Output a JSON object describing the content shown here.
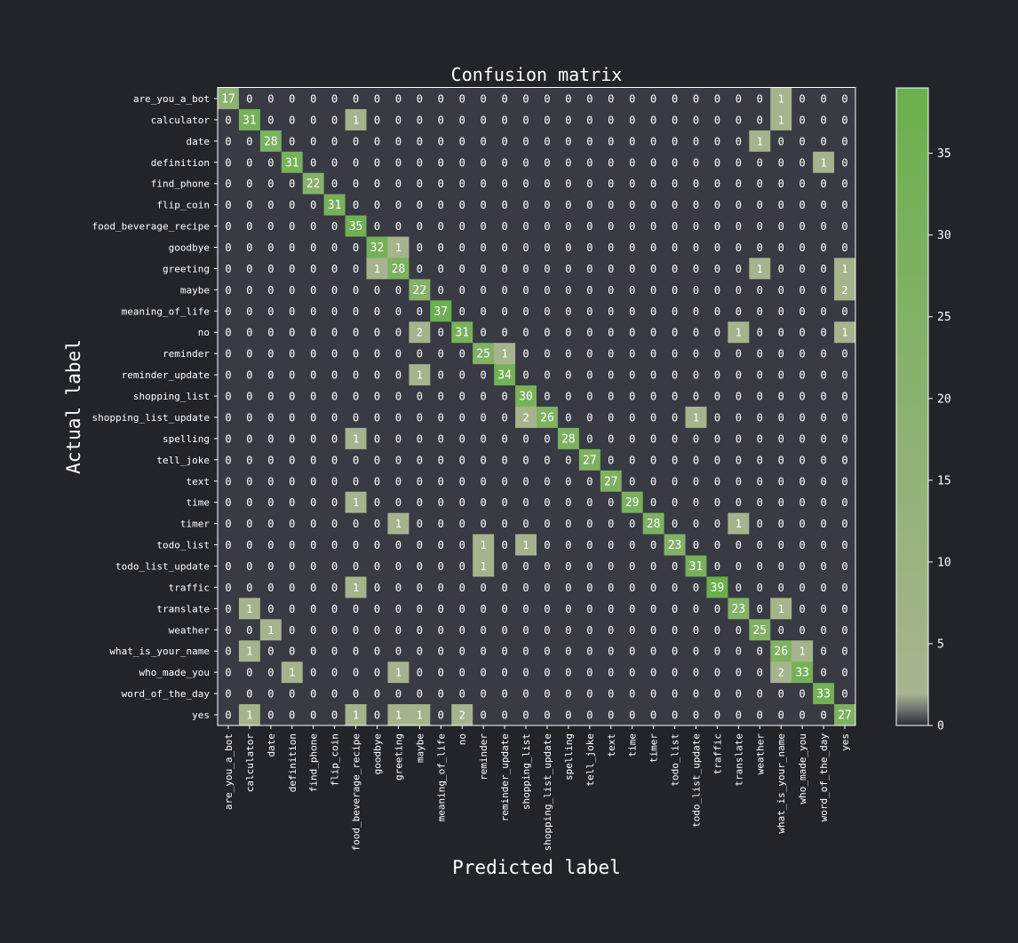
{
  "chart_data": {
    "type": "heatmap",
    "title": "Confusion matrix",
    "xlabel": "Predicted label",
    "ylabel": "Actual label",
    "labels": [
      "are_you_a_bot",
      "calculator",
      "date",
      "definition",
      "find_phone",
      "flip_coin",
      "food_beverage_recipe",
      "goodbye",
      "greeting",
      "maybe",
      "meaning_of_life",
      "no",
      "reminder",
      "reminder_update",
      "shopping_list",
      "shopping_list_update",
      "spelling",
      "tell_joke",
      "text",
      "time",
      "timer",
      "todo_list",
      "todo_list_update",
      "traffic",
      "translate",
      "weather",
      "what_is_your_name",
      "who_made_you",
      "word_of_the_day",
      "yes"
    ],
    "matrix": [
      [
        17,
        0,
        0,
        0,
        0,
        0,
        0,
        0,
        0,
        0,
        0,
        0,
        0,
        0,
        0,
        0,
        0,
        0,
        0,
        0,
        0,
        0,
        0,
        0,
        0,
        0,
        1,
        0,
        0,
        0
      ],
      [
        0,
        31,
        0,
        0,
        0,
        0,
        1,
        0,
        0,
        0,
        0,
        0,
        0,
        0,
        0,
        0,
        0,
        0,
        0,
        0,
        0,
        0,
        0,
        0,
        0,
        0,
        1,
        0,
        0,
        0
      ],
      [
        0,
        0,
        28,
        0,
        0,
        0,
        0,
        0,
        0,
        0,
        0,
        0,
        0,
        0,
        0,
        0,
        0,
        0,
        0,
        0,
        0,
        0,
        0,
        0,
        0,
        1,
        0,
        0,
        0,
        0
      ],
      [
        0,
        0,
        0,
        31,
        0,
        0,
        0,
        0,
        0,
        0,
        0,
        0,
        0,
        0,
        0,
        0,
        0,
        0,
        0,
        0,
        0,
        0,
        0,
        0,
        0,
        0,
        0,
        0,
        1,
        0
      ],
      [
        0,
        0,
        0,
        0,
        22,
        0,
        0,
        0,
        0,
        0,
        0,
        0,
        0,
        0,
        0,
        0,
        0,
        0,
        0,
        0,
        0,
        0,
        0,
        0,
        0,
        0,
        0,
        0,
        0,
        0
      ],
      [
        0,
        0,
        0,
        0,
        0,
        31,
        0,
        0,
        0,
        0,
        0,
        0,
        0,
        0,
        0,
        0,
        0,
        0,
        0,
        0,
        0,
        0,
        0,
        0,
        0,
        0,
        0,
        0,
        0,
        0
      ],
      [
        0,
        0,
        0,
        0,
        0,
        0,
        35,
        0,
        0,
        0,
        0,
        0,
        0,
        0,
        0,
        0,
        0,
        0,
        0,
        0,
        0,
        0,
        0,
        0,
        0,
        0,
        0,
        0,
        0,
        0
      ],
      [
        0,
        0,
        0,
        0,
        0,
        0,
        0,
        32,
        1,
        0,
        0,
        0,
        0,
        0,
        0,
        0,
        0,
        0,
        0,
        0,
        0,
        0,
        0,
        0,
        0,
        0,
        0,
        0,
        0,
        0
      ],
      [
        0,
        0,
        0,
        0,
        0,
        0,
        0,
        1,
        28,
        0,
        0,
        0,
        0,
        0,
        0,
        0,
        0,
        0,
        0,
        0,
        0,
        0,
        0,
        0,
        0,
        1,
        0,
        0,
        0,
        1
      ],
      [
        0,
        0,
        0,
        0,
        0,
        0,
        0,
        0,
        0,
        22,
        0,
        0,
        0,
        0,
        0,
        0,
        0,
        0,
        0,
        0,
        0,
        0,
        0,
        0,
        0,
        0,
        0,
        0,
        0,
        2
      ],
      [
        0,
        0,
        0,
        0,
        0,
        0,
        0,
        0,
        0,
        0,
        37,
        0,
        0,
        0,
        0,
        0,
        0,
        0,
        0,
        0,
        0,
        0,
        0,
        0,
        0,
        0,
        0,
        0,
        0,
        0
      ],
      [
        0,
        0,
        0,
        0,
        0,
        0,
        0,
        0,
        0,
        2,
        0,
        31,
        0,
        0,
        0,
        0,
        0,
        0,
        0,
        0,
        0,
        0,
        0,
        0,
        1,
        0,
        0,
        0,
        0,
        1
      ],
      [
        0,
        0,
        0,
        0,
        0,
        0,
        0,
        0,
        0,
        0,
        0,
        0,
        25,
        1,
        0,
        0,
        0,
        0,
        0,
        0,
        0,
        0,
        0,
        0,
        0,
        0,
        0,
        0,
        0,
        0
      ],
      [
        0,
        0,
        0,
        0,
        0,
        0,
        0,
        0,
        0,
        1,
        0,
        0,
        0,
        34,
        0,
        0,
        0,
        0,
        0,
        0,
        0,
        0,
        0,
        0,
        0,
        0,
        0,
        0,
        0,
        0
      ],
      [
        0,
        0,
        0,
        0,
        0,
        0,
        0,
        0,
        0,
        0,
        0,
        0,
        0,
        0,
        30,
        0,
        0,
        0,
        0,
        0,
        0,
        0,
        0,
        0,
        0,
        0,
        0,
        0,
        0,
        0
      ],
      [
        0,
        0,
        0,
        0,
        0,
        0,
        0,
        0,
        0,
        0,
        0,
        0,
        0,
        0,
        2,
        26,
        0,
        0,
        0,
        0,
        0,
        0,
        1,
        0,
        0,
        0,
        0,
        0,
        0,
        0
      ],
      [
        0,
        0,
        0,
        0,
        0,
        0,
        1,
        0,
        0,
        0,
        0,
        0,
        0,
        0,
        0,
        0,
        28,
        0,
        0,
        0,
        0,
        0,
        0,
        0,
        0,
        0,
        0,
        0,
        0,
        0
      ],
      [
        0,
        0,
        0,
        0,
        0,
        0,
        0,
        0,
        0,
        0,
        0,
        0,
        0,
        0,
        0,
        0,
        0,
        27,
        0,
        0,
        0,
        0,
        0,
        0,
        0,
        0,
        0,
        0,
        0,
        0
      ],
      [
        0,
        0,
        0,
        0,
        0,
        0,
        0,
        0,
        0,
        0,
        0,
        0,
        0,
        0,
        0,
        0,
        0,
        0,
        27,
        0,
        0,
        0,
        0,
        0,
        0,
        0,
        0,
        0,
        0,
        0
      ],
      [
        0,
        0,
        0,
        0,
        0,
        0,
        1,
        0,
        0,
        0,
        0,
        0,
        0,
        0,
        0,
        0,
        0,
        0,
        0,
        29,
        0,
        0,
        0,
        0,
        0,
        0,
        0,
        0,
        0,
        0
      ],
      [
        0,
        0,
        0,
        0,
        0,
        0,
        0,
        0,
        1,
        0,
        0,
        0,
        0,
        0,
        0,
        0,
        0,
        0,
        0,
        0,
        28,
        0,
        0,
        0,
        1,
        0,
        0,
        0,
        0,
        0
      ],
      [
        0,
        0,
        0,
        0,
        0,
        0,
        0,
        0,
        0,
        0,
        0,
        0,
        1,
        0,
        1,
        0,
        0,
        0,
        0,
        0,
        0,
        23,
        0,
        0,
        0,
        0,
        0,
        0,
        0,
        0
      ],
      [
        0,
        0,
        0,
        0,
        0,
        0,
        0,
        0,
        0,
        0,
        0,
        0,
        1,
        0,
        0,
        0,
        0,
        0,
        0,
        0,
        0,
        0,
        31,
        0,
        0,
        0,
        0,
        0,
        0,
        0
      ],
      [
        0,
        0,
        0,
        0,
        0,
        0,
        1,
        0,
        0,
        0,
        0,
        0,
        0,
        0,
        0,
        0,
        0,
        0,
        0,
        0,
        0,
        0,
        0,
        39,
        0,
        0,
        0,
        0,
        0,
        0
      ],
      [
        0,
        1,
        0,
        0,
        0,
        0,
        0,
        0,
        0,
        0,
        0,
        0,
        0,
        0,
        0,
        0,
        0,
        0,
        0,
        0,
        0,
        0,
        0,
        0,
        23,
        0,
        1,
        0,
        0,
        0
      ],
      [
        0,
        0,
        1,
        0,
        0,
        0,
        0,
        0,
        0,
        0,
        0,
        0,
        0,
        0,
        0,
        0,
        0,
        0,
        0,
        0,
        0,
        0,
        0,
        0,
        0,
        25,
        0,
        0,
        0,
        0
      ],
      [
        0,
        1,
        0,
        0,
        0,
        0,
        0,
        0,
        0,
        0,
        0,
        0,
        0,
        0,
        0,
        0,
        0,
        0,
        0,
        0,
        0,
        0,
        0,
        0,
        0,
        0,
        26,
        1,
        0,
        0
      ],
      [
        0,
        0,
        0,
        1,
        0,
        0,
        0,
        0,
        1,
        0,
        0,
        0,
        0,
        0,
        0,
        0,
        0,
        0,
        0,
        0,
        0,
        0,
        0,
        0,
        0,
        0,
        2,
        33,
        0,
        0
      ],
      [
        0,
        0,
        0,
        0,
        0,
        0,
        0,
        0,
        0,
        0,
        0,
        0,
        0,
        0,
        0,
        0,
        0,
        0,
        0,
        0,
        0,
        0,
        0,
        0,
        0,
        0,
        0,
        0,
        33,
        0
      ],
      [
        0,
        1,
        0,
        0,
        0,
        0,
        1,
        0,
        1,
        1,
        0,
        2,
        0,
        0,
        0,
        0,
        0,
        0,
        0,
        0,
        0,
        0,
        0,
        0,
        0,
        0,
        0,
        0,
        0,
        27
      ]
    ],
    "colorbar": {
      "ticks": [
        0,
        5,
        10,
        15,
        20,
        25,
        30,
        35
      ],
      "vmin": 0,
      "vmax": 39
    },
    "colors": {
      "background": "#212428",
      "zero_cell": "#383b44",
      "low": "#a8b48f",
      "high": "#6ab04c",
      "cell_text": "#ffffff",
      "axis_text": "#ffffff",
      "frame": "#ffffff"
    },
    "grid": false
  }
}
